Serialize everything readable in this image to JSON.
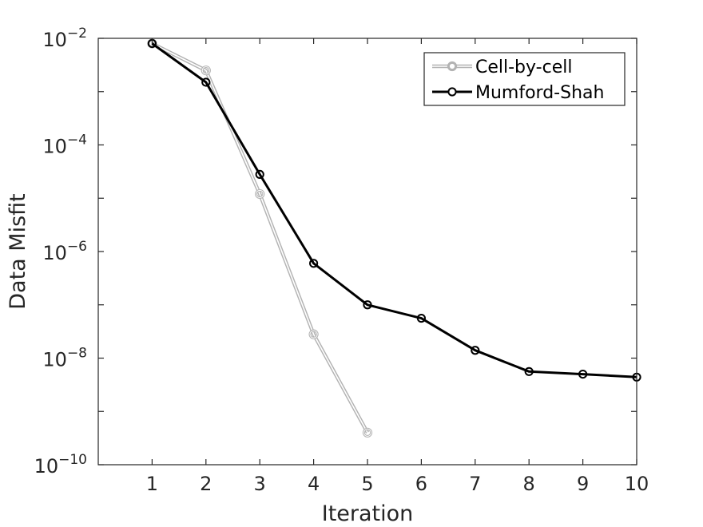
{
  "chart_data": {
    "type": "line",
    "xlabel": "Iteration",
    "ylabel": "Data Misfit",
    "xlim": [
      0,
      10
    ],
    "ylim": [
      1e-10,
      0.01
    ],
    "yscale": "log",
    "x_ticks": [
      1,
      2,
      3,
      4,
      5,
      6,
      7,
      8,
      9,
      10
    ],
    "y_ticks": [
      {
        "value": 0.01,
        "base": "10",
        "exponent": "−2"
      },
      {
        "value": 0.0001,
        "base": "10",
        "exponent": "−4"
      },
      {
        "value": 1e-06,
        "base": "10",
        "exponent": "−6"
      },
      {
        "value": 1e-08,
        "base": "10",
        "exponent": "−8"
      },
      {
        "value": 1e-10,
        "base": "10",
        "exponent": "−10"
      }
    ],
    "grid": false,
    "legend_position": "top-right",
    "series": [
      {
        "name": "Cell-by-cell",
        "color": "#b3b3b3",
        "style": "double-outline",
        "marker": "circle",
        "x": [
          1,
          2,
          3,
          4,
          5
        ],
        "y": [
          0.008,
          0.0025,
          1.2e-05,
          2.8e-08,
          4e-10
        ]
      },
      {
        "name": "Mumford-Shah",
        "color": "#000000",
        "style": "solid",
        "marker": "circle",
        "x": [
          1,
          2,
          3,
          4,
          5,
          6,
          7,
          8,
          9,
          10
        ],
        "y": [
          0.008,
          0.0015,
          2.8e-05,
          6e-07,
          1e-07,
          5.6e-08,
          1.4e-08,
          5.6e-09,
          5e-09,
          4.4e-09
        ]
      }
    ]
  }
}
